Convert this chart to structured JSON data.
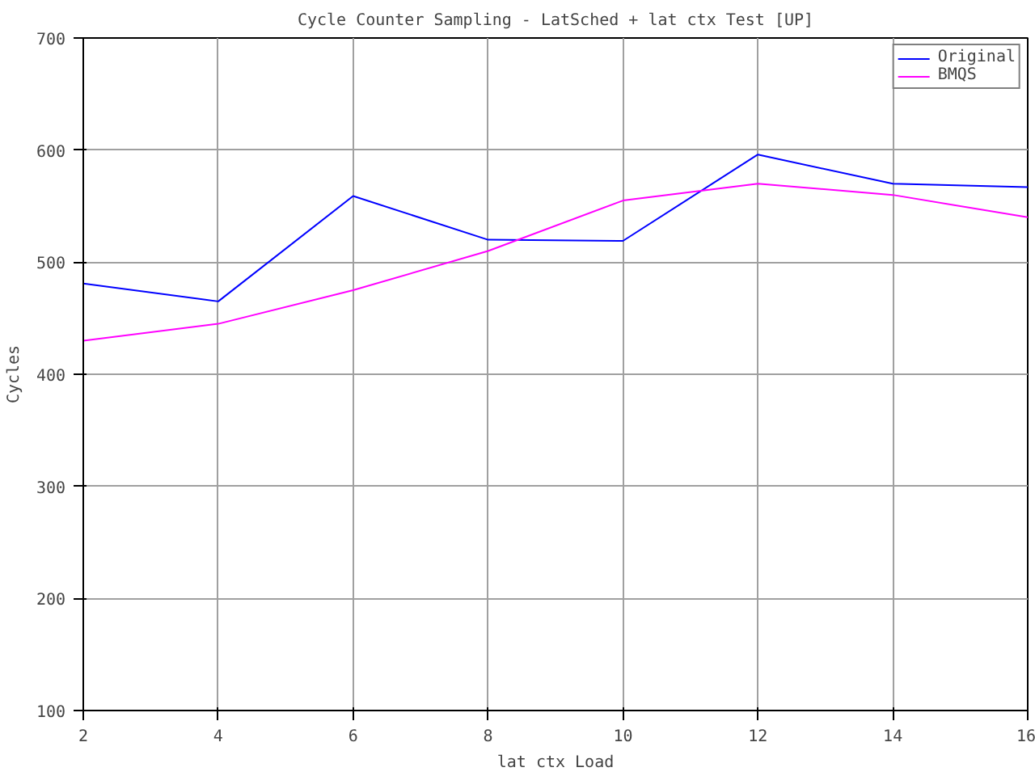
{
  "chart_data": {
    "type": "line",
    "title": "Cycle Counter Sampling - LatSched + lat ctx Test [UP]",
    "xlabel": "lat ctx Load",
    "ylabel": "Cycles",
    "x": [
      2,
      4,
      6,
      8,
      10,
      12,
      14,
      16
    ],
    "series": [
      {
        "name": "Original",
        "color": "#0000ff",
        "values": [
          481,
          465,
          559,
          520,
          519,
          596,
          570,
          567
        ]
      },
      {
        "name": "BMQS",
        "color": "#ff00ff",
        "values": [
          430,
          445,
          475,
          510,
          555,
          570,
          560,
          540
        ]
      }
    ],
    "xlim": [
      2,
      16
    ],
    "xticks": [
      2,
      4,
      6,
      8,
      10,
      12,
      14,
      16
    ],
    "ylim": [
      100,
      700
    ],
    "yticks": [
      100,
      200,
      300,
      400,
      500,
      600,
      700
    ],
    "grid": true,
    "legend": "top right",
    "marker": "none",
    "line_style": "solid"
  }
}
